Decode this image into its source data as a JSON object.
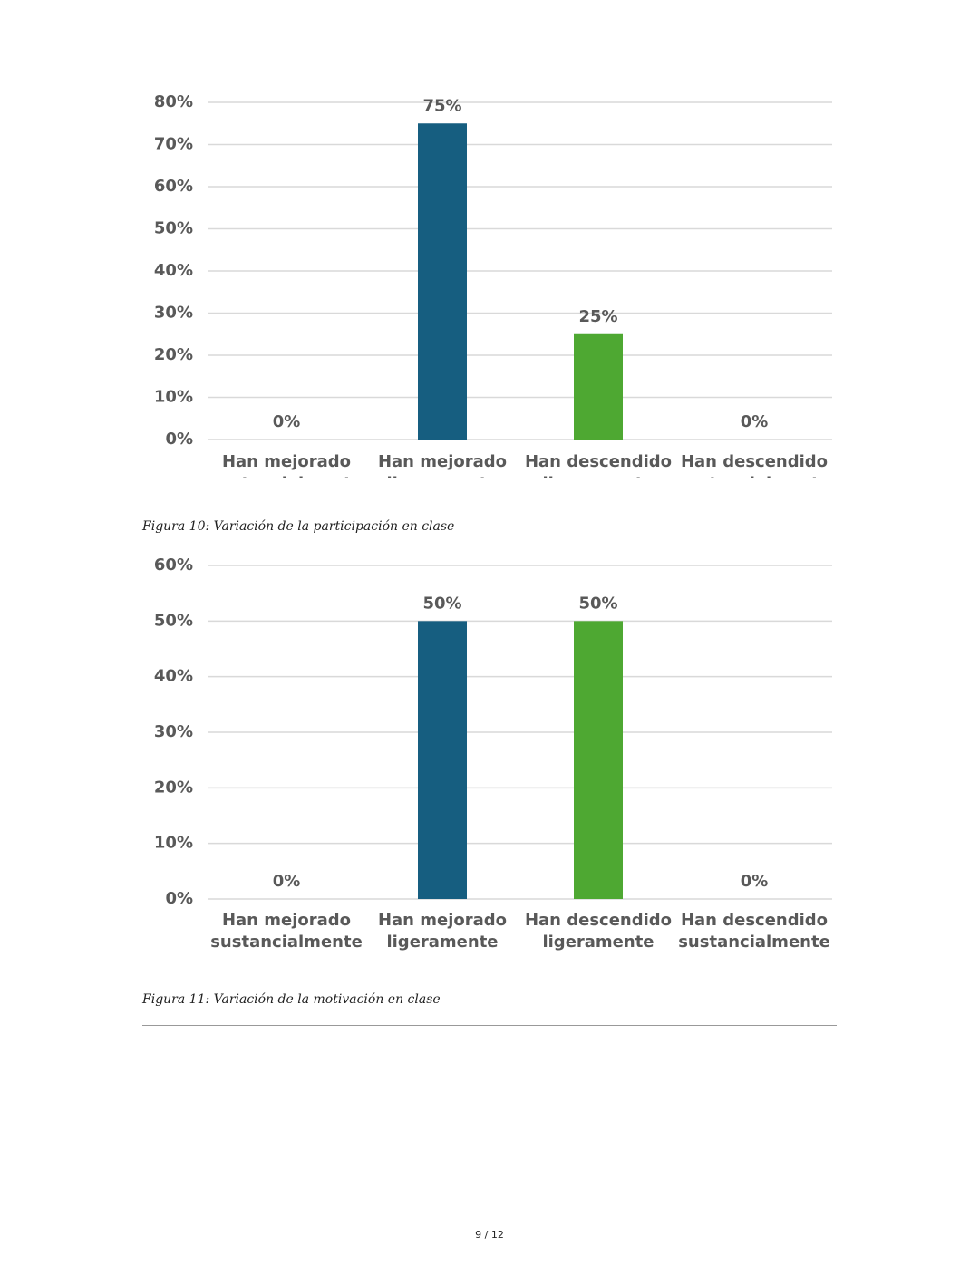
{
  "chart_data": [
    {
      "type": "bar",
      "categories": [
        "Han mejorado sustancialmente",
        "Han mejorado ligeramente",
        "Han descendido ligeramente",
        "Han descendido sustancialmente"
      ],
      "values": [
        0,
        75,
        25,
        0
      ],
      "value_labels": [
        "0%",
        "75%",
        "25%",
        "0%"
      ],
      "colors": [
        "#165e80",
        "#165e80",
        "#4ea832",
        "#4ea832"
      ],
      "ylim": [
        0,
        80
      ],
      "yticks": [
        {
          "value": 0,
          "label": "0%"
        },
        {
          "value": 10,
          "label": "10%"
        },
        {
          "value": 20,
          "label": "20%"
        },
        {
          "value": 30,
          "label": "30%"
        },
        {
          "value": 40,
          "label": "40%"
        },
        {
          "value": 50,
          "label": "50%"
        },
        {
          "value": 60,
          "label": "60%"
        },
        {
          "value": 70,
          "label": "70%"
        },
        {
          "value": 80,
          "label": "80%"
        }
      ],
      "grid": true
    },
    {
      "type": "bar",
      "categories": [
        "Han mejorado sustancialmente",
        "Han mejorado ligeramente",
        "Han descendido ligeramente",
        "Han descendido sustancialmente"
      ],
      "values": [
        0,
        50,
        50,
        0
      ],
      "value_labels": [
        "0%",
        "50%",
        "50%",
        "0%"
      ],
      "colors": [
        "#165e80",
        "#165e80",
        "#4ea832",
        "#4ea832"
      ],
      "ylim": [
        0,
        60
      ],
      "yticks": [
        {
          "value": 0,
          "label": "0%"
        },
        {
          "value": 10,
          "label": "10%"
        },
        {
          "value": 20,
          "label": "20%"
        },
        {
          "value": 30,
          "label": "30%"
        },
        {
          "value": 40,
          "label": "40%"
        },
        {
          "value": 50,
          "label": "50%"
        },
        {
          "value": 60,
          "label": "60%"
        }
      ],
      "grid": true
    }
  ],
  "captions": [
    "Figura 10: Variación de la participación en clase",
    "Figura 11: Variación de la motivación en clase"
  ],
  "page_number": "9 / 12"
}
